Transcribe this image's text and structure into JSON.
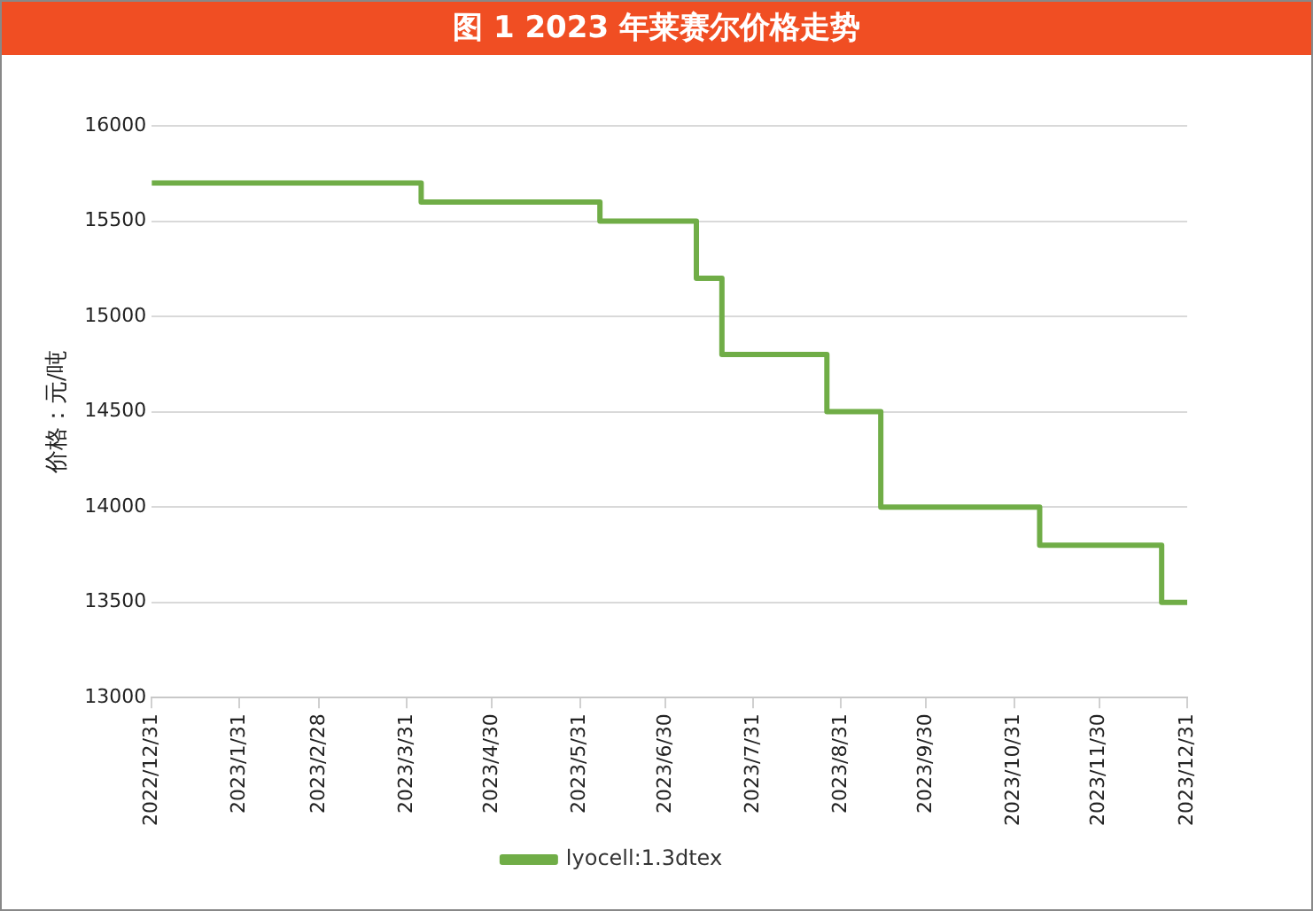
{
  "chart_data": {
    "type": "step",
    "title": "图 1 2023 年莱赛尔价格走势",
    "ylabel": "价格：元/吨",
    "x": [
      "2022-12-31",
      "2023-04-05",
      "2023-06-07",
      "2023-07-11",
      "2023-07-20",
      "2023-08-26",
      "2023-09-14",
      "2023-11-09",
      "2023-12-22",
      "2023-12-31"
    ],
    "series": [
      {
        "name": "lyocell:1.3dtex",
        "color": "#70ad47",
        "values": [
          15700,
          15600,
          15500,
          15200,
          14800,
          14500,
          14000,
          13800,
          13500,
          13500
        ]
      }
    ],
    "xlim": [
      "2022-12-31",
      "2023-12-31"
    ],
    "xticks": [
      {
        "value": "2022-12-31",
        "label": "2022/12/31"
      },
      {
        "value": "2023-01-31",
        "label": "2023/1/31"
      },
      {
        "value": "2023-02-28",
        "label": "2023/2/28"
      },
      {
        "value": "2023-03-31",
        "label": "2023/3/31"
      },
      {
        "value": "2023-04-30",
        "label": "2023/4/30"
      },
      {
        "value": "2023-05-31",
        "label": "2023/5/31"
      },
      {
        "value": "2023-06-30",
        "label": "2023/6/30"
      },
      {
        "value": "2023-07-31",
        "label": "2023/7/31"
      },
      {
        "value": "2023-08-31",
        "label": "2023/8/31"
      },
      {
        "value": "2023-09-30",
        "label": "2023/9/30"
      },
      {
        "value": "2023-10-31",
        "label": "2023/10/31"
      },
      {
        "value": "2023-11-30",
        "label": "2023/11/30"
      },
      {
        "value": "2023-12-31",
        "label": "2023/12/31"
      }
    ],
    "ylim": [
      13000,
      16000
    ],
    "yticks": [
      13000,
      13500,
      14000,
      14500,
      15000,
      15500,
      16000
    ],
    "grid": "y",
    "legend": "bottom",
    "marker": "none",
    "line_style": "solid"
  }
}
